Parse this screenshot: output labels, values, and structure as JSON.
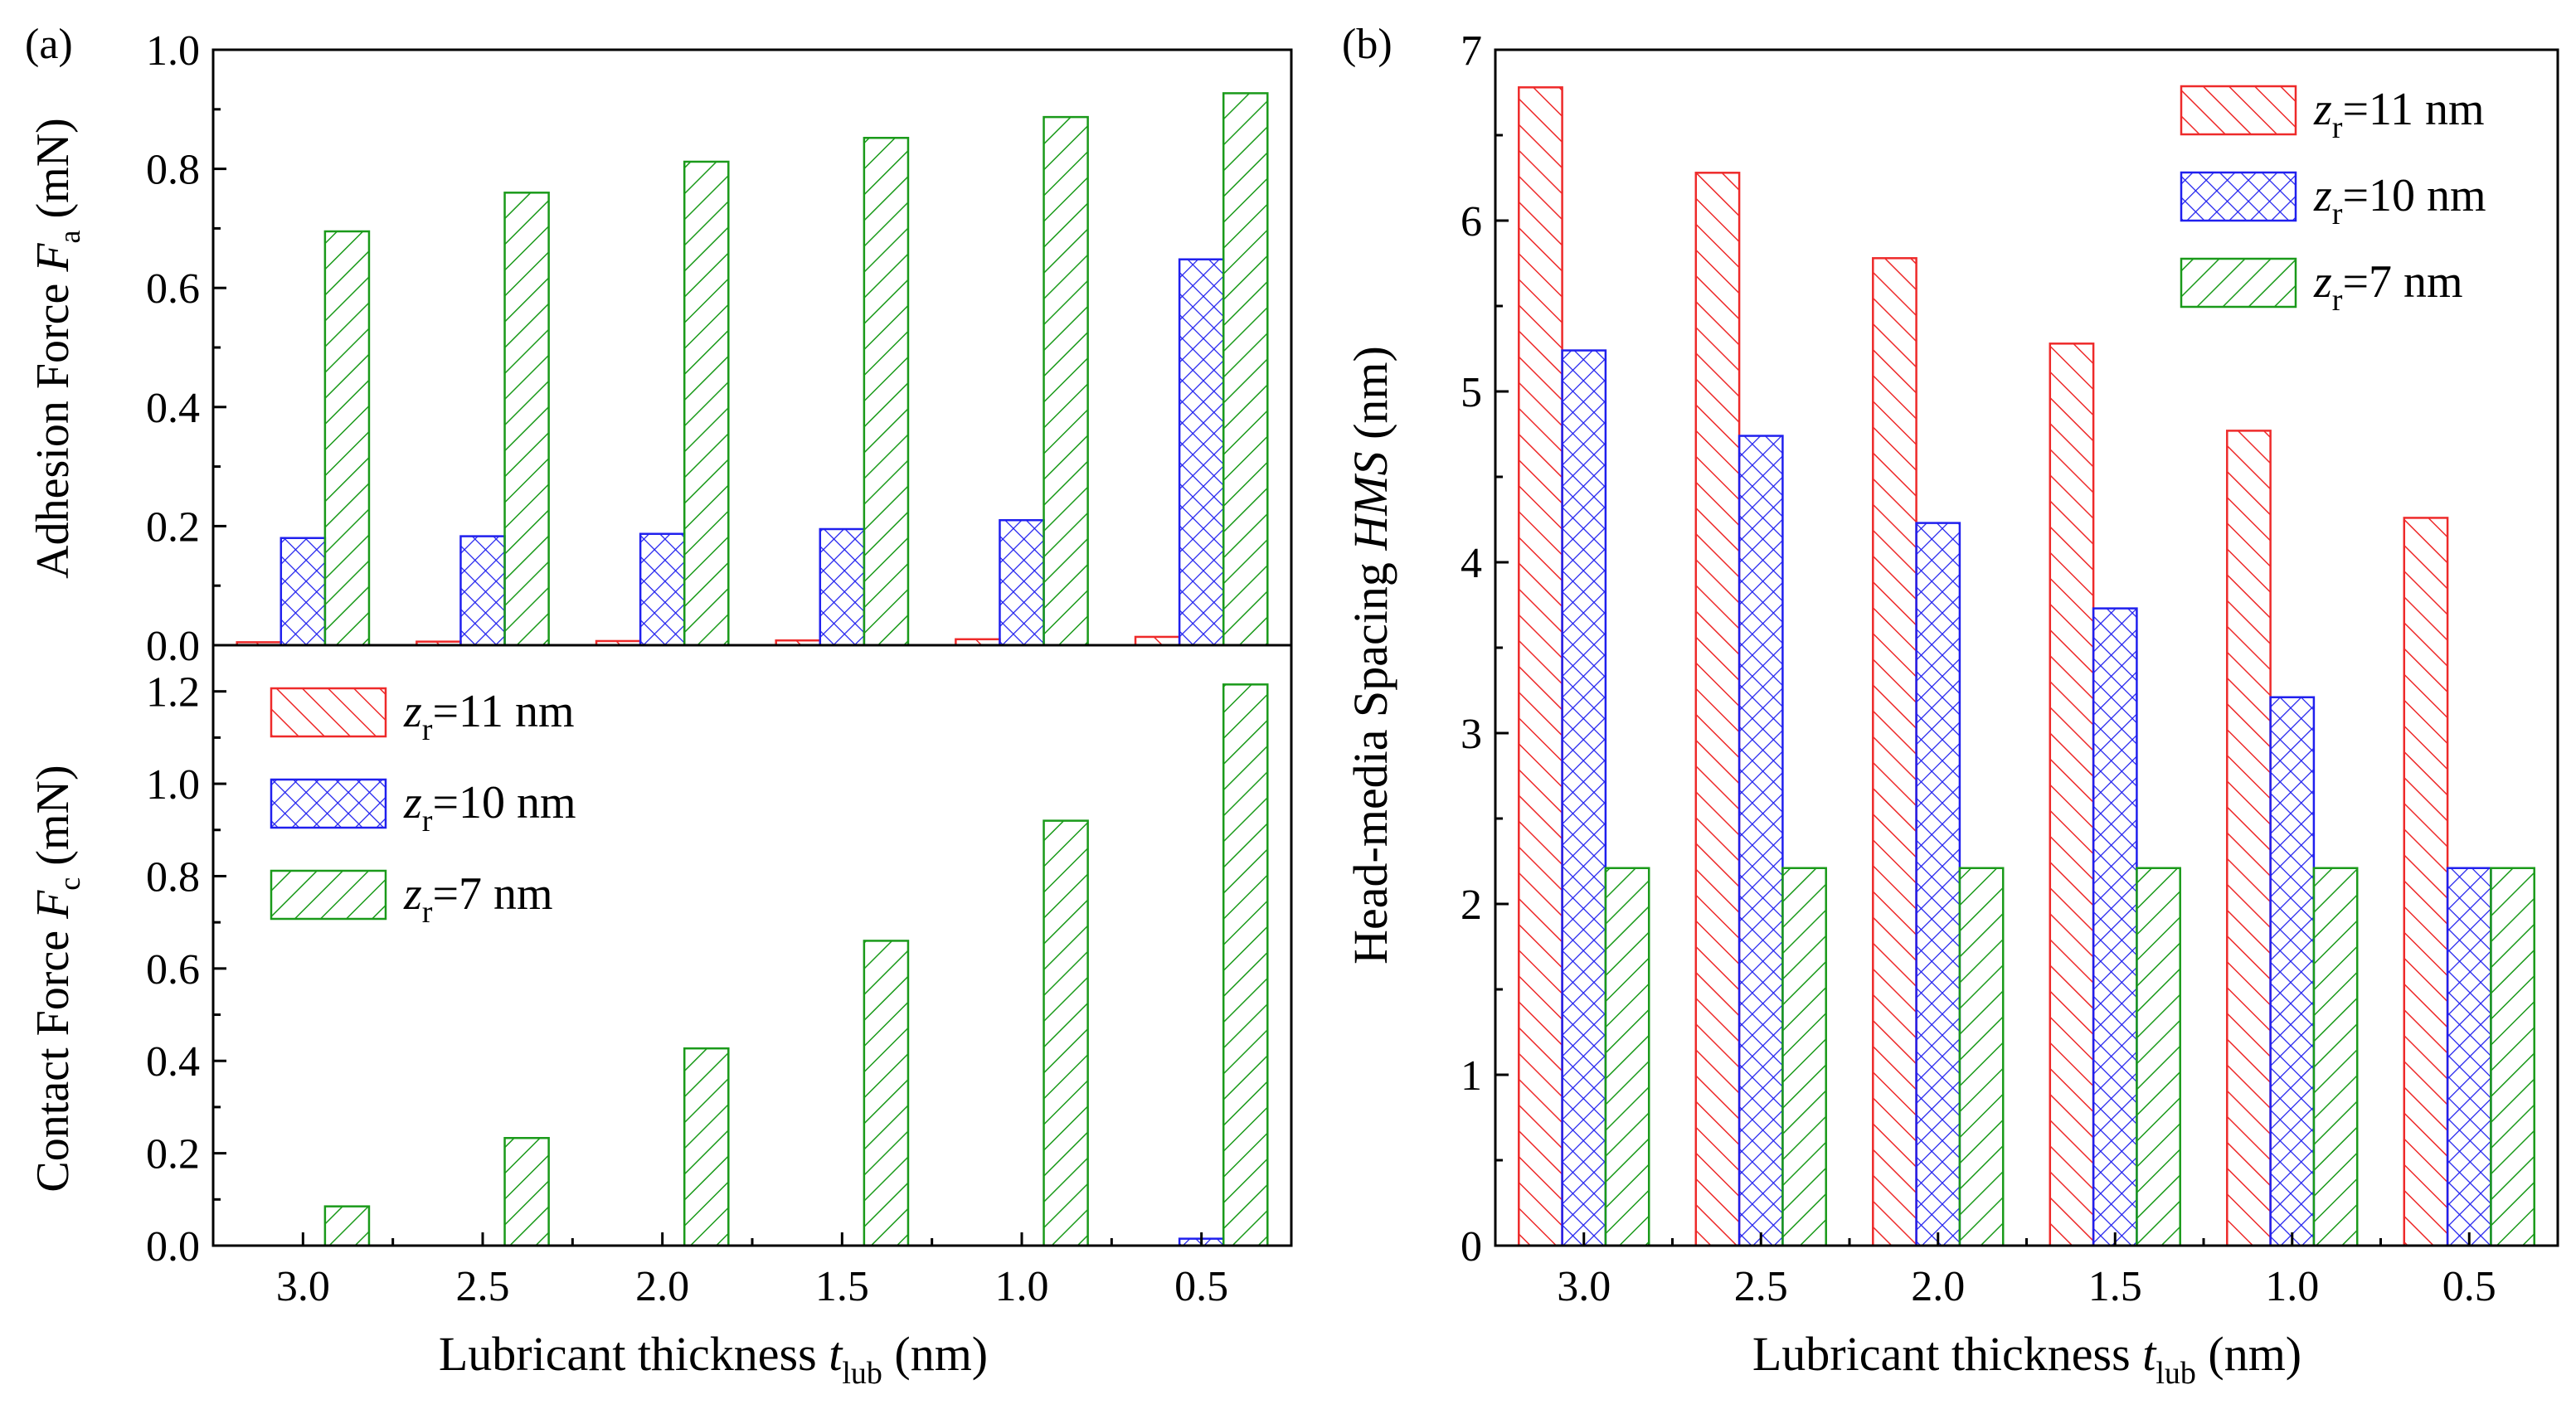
{
  "colors": {
    "red": "#ee2a2a",
    "blue": "#2020ee",
    "green": "#1a9a1a"
  },
  "chart_data": [
    {
      "type": "bar",
      "panel_label": "(a)",
      "subplot": "top",
      "categories": [
        "3.0",
        "2.5",
        "2.0",
        "1.5",
        "1.0",
        "0.5"
      ],
      "series": [
        {
          "name": "11 nm",
          "values": [
            0.005,
            0.006,
            0.007,
            0.008,
            0.01,
            0.014
          ]
        },
        {
          "name": "10 nm",
          "values": [
            0.18,
            0.183,
            0.187,
            0.195,
            0.21,
            0.648
          ]
        },
        {
          "name": "7 nm",
          "values": [
            0.695,
            0.76,
            0.812,
            0.852,
            0.887,
            0.927
          ]
        }
      ],
      "ylabel": {
        "main": "Adhesion Force ",
        "ital": "F",
        "sub": "a",
        "unit": " (mN)"
      },
      "ylim": [
        0,
        1.0
      ],
      "yticks": [
        "0.0",
        "0.2",
        "0.4",
        "0.6",
        "0.8",
        "1.0"
      ]
    },
    {
      "type": "bar",
      "panel_label": "",
      "subplot": "bottom",
      "categories": [
        "3.0",
        "2.5",
        "2.0",
        "1.5",
        "1.0",
        "0.5"
      ],
      "series": [
        {
          "name": "11 nm",
          "values": [
            0,
            0,
            0,
            0,
            0,
            0
          ]
        },
        {
          "name": "10 nm",
          "values": [
            0,
            0,
            0,
            0,
            0,
            0.015
          ]
        },
        {
          "name": "7 nm",
          "values": [
            0.085,
            0.233,
            0.427,
            0.66,
            0.92,
            1.215
          ]
        }
      ],
      "ylabel": {
        "main": "Contact Force ",
        "ital": "F",
        "sub": "c",
        "unit": " (mN)"
      },
      "ylim": [
        0,
        1.3
      ],
      "yticks": [
        "0.0",
        "0.2",
        "0.4",
        "0.6",
        "0.8",
        "1.0",
        "1.2"
      ],
      "xlabel": {
        "main": "Lubricant thickness ",
        "ital": "t",
        "sub": "lub",
        "unit": " (nm)"
      },
      "legend": {
        "position": "upper-left",
        "prefix": "z",
        "sub": "r",
        "entries": [
          "=11 nm",
          "=10 nm",
          "=7 nm"
        ]
      }
    },
    {
      "type": "bar",
      "panel_label": "(b)",
      "categories": [
        "3.0",
        "2.5",
        "2.0",
        "1.5",
        "1.0",
        "0.5"
      ],
      "series": [
        {
          "name": "11 nm",
          "values": [
            6.78,
            6.28,
            5.78,
            5.28,
            4.77,
            4.26
          ]
        },
        {
          "name": "10 nm",
          "values": [
            5.24,
            4.74,
            4.23,
            3.73,
            3.21,
            2.21
          ]
        },
        {
          "name": "7 nm",
          "values": [
            2.21,
            2.21,
            2.21,
            2.21,
            2.21,
            2.21
          ]
        }
      ],
      "ylabel": {
        "main": "Head-media Spacing ",
        "ital": "HMS",
        "unit": " (nm)"
      },
      "ylim": [
        0,
        7
      ],
      "yticks": [
        "0",
        "1",
        "2",
        "3",
        "4",
        "5",
        "6",
        "7"
      ],
      "xlabel": {
        "main": "Lubricant thickness ",
        "ital": "t",
        "sub": "lub",
        "unit": " (nm)"
      },
      "legend": {
        "position": "top-right",
        "prefix": "z",
        "sub": "r",
        "entries": [
          "=11 nm",
          "=10 nm",
          "=7 nm"
        ]
      }
    }
  ]
}
